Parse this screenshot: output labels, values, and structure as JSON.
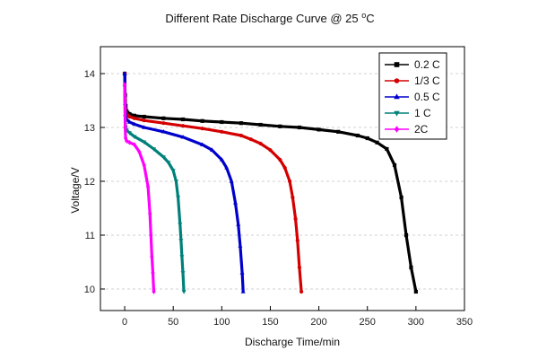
{
  "chart_data": {
    "type": "line",
    "title": "Different Rate Discharge Curve @ 25 ",
    "title_superscript": "o",
    "title_suffix": "C",
    "xlabel": "Discharge Time/min",
    "ylabel": "Voltage/V",
    "xlim": [
      -25,
      350
    ],
    "ylim": [
      9.6,
      14.5
    ],
    "xticks": [
      0,
      50,
      100,
      150,
      200,
      250,
      300,
      350
    ],
    "yticks": [
      10,
      11,
      12,
      13,
      14
    ],
    "grid": true,
    "legend_position": "top-right",
    "series": [
      {
        "name": "0.2 C",
        "color": "#000000",
        "marker": "square",
        "x": [
          0,
          0.5,
          1,
          2,
          3,
          5,
          10,
          20,
          40,
          60,
          80,
          100,
          120,
          140,
          160,
          180,
          200,
          220,
          240,
          250,
          260,
          270,
          278,
          285,
          290,
          295,
          300
        ],
        "y": [
          14.0,
          13.6,
          13.4,
          13.3,
          13.27,
          13.25,
          13.22,
          13.2,
          13.17,
          13.15,
          13.12,
          13.1,
          13.08,
          13.05,
          13.02,
          13.0,
          12.96,
          12.92,
          12.85,
          12.8,
          12.72,
          12.6,
          12.3,
          11.7,
          11.0,
          10.4,
          9.95
        ]
      },
      {
        "name": "1/3 C",
        "color": "#d40000",
        "marker": "circle",
        "x": [
          0,
          0.5,
          1,
          2,
          5,
          10,
          20,
          40,
          60,
          80,
          100,
          120,
          130,
          140,
          150,
          160,
          165,
          170,
          173,
          176,
          178,
          180,
          182
        ],
        "y": [
          14.0,
          13.5,
          13.35,
          13.25,
          13.2,
          13.17,
          13.13,
          13.08,
          13.03,
          12.98,
          12.92,
          12.85,
          12.78,
          12.7,
          12.58,
          12.4,
          12.25,
          12.0,
          11.7,
          11.3,
          10.9,
          10.4,
          9.95
        ]
      },
      {
        "name": "0.5 C",
        "color": "#0000cc",
        "marker": "triangle-up",
        "x": [
          0,
          0.5,
          1,
          2,
          5,
          10,
          20,
          40,
          60,
          80,
          90,
          100,
          105,
          110,
          114,
          117,
          119,
          121,
          122
        ],
        "y": [
          14.0,
          13.45,
          13.25,
          13.15,
          13.1,
          13.06,
          13.0,
          12.92,
          12.82,
          12.68,
          12.58,
          12.4,
          12.25,
          12.0,
          11.6,
          11.2,
          10.8,
          10.3,
          9.95
        ]
      },
      {
        "name": "1 C",
        "color": "#00807a",
        "marker": "triangle-down",
        "x": [
          0,
          0.5,
          1,
          2,
          5,
          10,
          20,
          30,
          40,
          45,
          50,
          53,
          55,
          57,
          58,
          59,
          60,
          61
        ],
        "y": [
          13.75,
          13.2,
          13.0,
          12.95,
          12.9,
          12.83,
          12.73,
          12.6,
          12.45,
          12.35,
          12.2,
          12.0,
          11.7,
          11.2,
          10.9,
          10.6,
          10.3,
          9.95
        ]
      },
      {
        "name": "2C",
        "color": "#ff00ff",
        "marker": "diamond",
        "x": [
          0,
          0.5,
          1,
          2,
          5,
          10,
          15,
          20,
          24,
          26,
          27,
          28,
          29,
          30
        ],
        "y": [
          13.8,
          13.0,
          12.8,
          12.75,
          12.72,
          12.68,
          12.55,
          12.3,
          11.9,
          11.4,
          11.0,
          10.6,
          10.3,
          9.95
        ]
      }
    ]
  }
}
